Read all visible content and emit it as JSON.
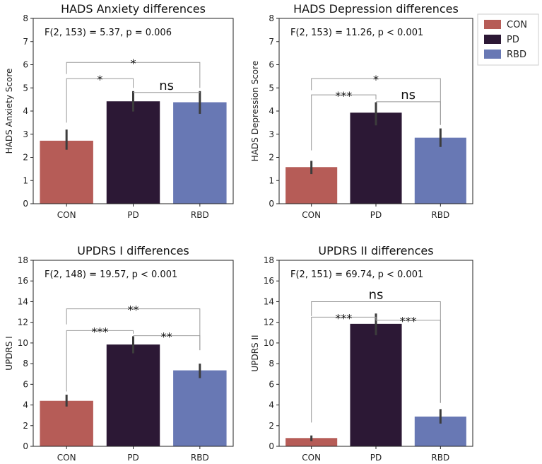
{
  "colors": {
    "CON": "#b65c57",
    "PD": "#2c1835",
    "RBD": "#6878b4",
    "errorbar": "#3c3c3c",
    "bracket": "#999999"
  },
  "legend": {
    "items": [
      {
        "label": "CON",
        "color": "#b65c57"
      },
      {
        "label": "PD",
        "color": "#2c1835"
      },
      {
        "label": "RBD",
        "color": "#6878b4"
      }
    ]
  },
  "chart_data": [
    {
      "type": "bar",
      "title": "HADS Anxiety differences",
      "ylabel": "HADS Anxiety Score",
      "stat_text": "F(2, 153) = 5.37, p = 0.006",
      "categories": [
        "CON",
        "PD",
        "RBD"
      ],
      "values": [
        2.72,
        4.42,
        4.38
      ],
      "error_low": [
        2.33,
        3.98,
        3.88
      ],
      "error_high": [
        3.2,
        4.86,
        4.86
      ],
      "ylim": [
        0,
        8
      ],
      "yticks": [
        "0",
        "1",
        "2",
        "3",
        "4",
        "5",
        "6",
        "7",
        "8"
      ],
      "comparisons": [
        {
          "pair": "CON-PD",
          "label": "*",
          "line_y": 5.4,
          "from_top_a": 3.5,
          "from_top_b": 5.0
        },
        {
          "pair": "PD-RBD",
          "label": "ns",
          "line_y": 4.8,
          "from_top_a": 4.8,
          "from_top_b": 4.8
        },
        {
          "pair": "CON-RBD",
          "label": "*",
          "line_y": 6.1,
          "from_top_a": 5.6,
          "from_top_b": 5.0
        }
      ]
    },
    {
      "type": "bar",
      "title": "HADS Depression differences",
      "ylabel": "HADS Depression Score",
      "stat_text": "F(2, 153) = 11.26, p < 0.001",
      "categories": [
        "CON",
        "PD",
        "RBD"
      ],
      "values": [
        1.58,
        3.93,
        2.85
      ],
      "error_low": [
        1.28,
        3.38,
        2.45
      ],
      "error_high": [
        1.85,
        4.38,
        3.25
      ],
      "ylim": [
        0,
        8
      ],
      "yticks": [
        "0",
        "1",
        "2",
        "3",
        "4",
        "5",
        "6",
        "7",
        "8"
      ],
      "comparisons": [
        {
          "pair": "CON-PD",
          "label": "***",
          "line_y": 4.7,
          "from_top_a": 2.3,
          "from_top_b": 4.5
        },
        {
          "pair": "PD-RBD",
          "label": "ns",
          "line_y": 4.4,
          "from_top_a": 4.4,
          "from_top_b": 3.4
        },
        {
          "pair": "CON-RBD",
          "label": "*",
          "line_y": 5.4,
          "from_top_a": 4.9,
          "from_top_b": 3.4
        }
      ]
    },
    {
      "type": "bar",
      "title": "UPDRS I differences",
      "ylabel": "UPDRS I",
      "stat_text": "F(2, 148) = 19.57, p < 0.001",
      "categories": [
        "CON",
        "PD",
        "RBD"
      ],
      "values": [
        4.4,
        9.85,
        7.35
      ],
      "error_low": [
        3.85,
        9.0,
        6.6
      ],
      "error_high": [
        5.0,
        10.65,
        8.0
      ],
      "ylim": [
        0,
        18
      ],
      "yticks": [
        "0",
        "2",
        "4",
        "6",
        "8",
        "10",
        "12",
        "14",
        "16",
        "18"
      ],
      "comparisons": [
        {
          "pair": "CON-PD",
          "label": "***",
          "line_y": 11.2,
          "from_top_a": 5.3,
          "from_top_b": 10.9
        },
        {
          "pair": "PD-RBD",
          "label": "**",
          "line_y": 10.7,
          "from_top_a": 10.7,
          "from_top_b": 9.3
        },
        {
          "pair": "CON-RBD",
          "label": "**",
          "line_y": 13.3,
          "from_top_a": 11.8,
          "from_top_b": 9.3
        }
      ]
    },
    {
      "type": "bar",
      "title": "UPDRS II differences",
      "ylabel": "UPDRS II",
      "stat_text": "F(2, 151) = 69.74, p < 0.001",
      "categories": [
        "CON",
        "PD",
        "RBD"
      ],
      "values": [
        0.8,
        11.85,
        2.88
      ],
      "error_low": [
        0.5,
        10.75,
        2.2
      ],
      "error_high": [
        1.05,
        12.85,
        3.6
      ],
      "ylim": [
        0,
        18
      ],
      "yticks": [
        "0",
        "2",
        "4",
        "6",
        "8",
        "10",
        "12",
        "14",
        "16",
        "18"
      ],
      "comparisons": [
        {
          "pair": "CON-PD",
          "label": "***",
          "line_y": 12.5,
          "from_top_a": 2.3,
          "from_top_b": 12.2
        },
        {
          "pair": "PD-RBD",
          "label": "***",
          "line_y": 12.2,
          "from_top_a": 12.2,
          "from_top_b": 4.2
        },
        {
          "pair": "CON-RBD",
          "label": "ns",
          "line_y": 14.0,
          "from_top_a": 12.6,
          "from_top_b": 4.2
        }
      ]
    }
  ]
}
